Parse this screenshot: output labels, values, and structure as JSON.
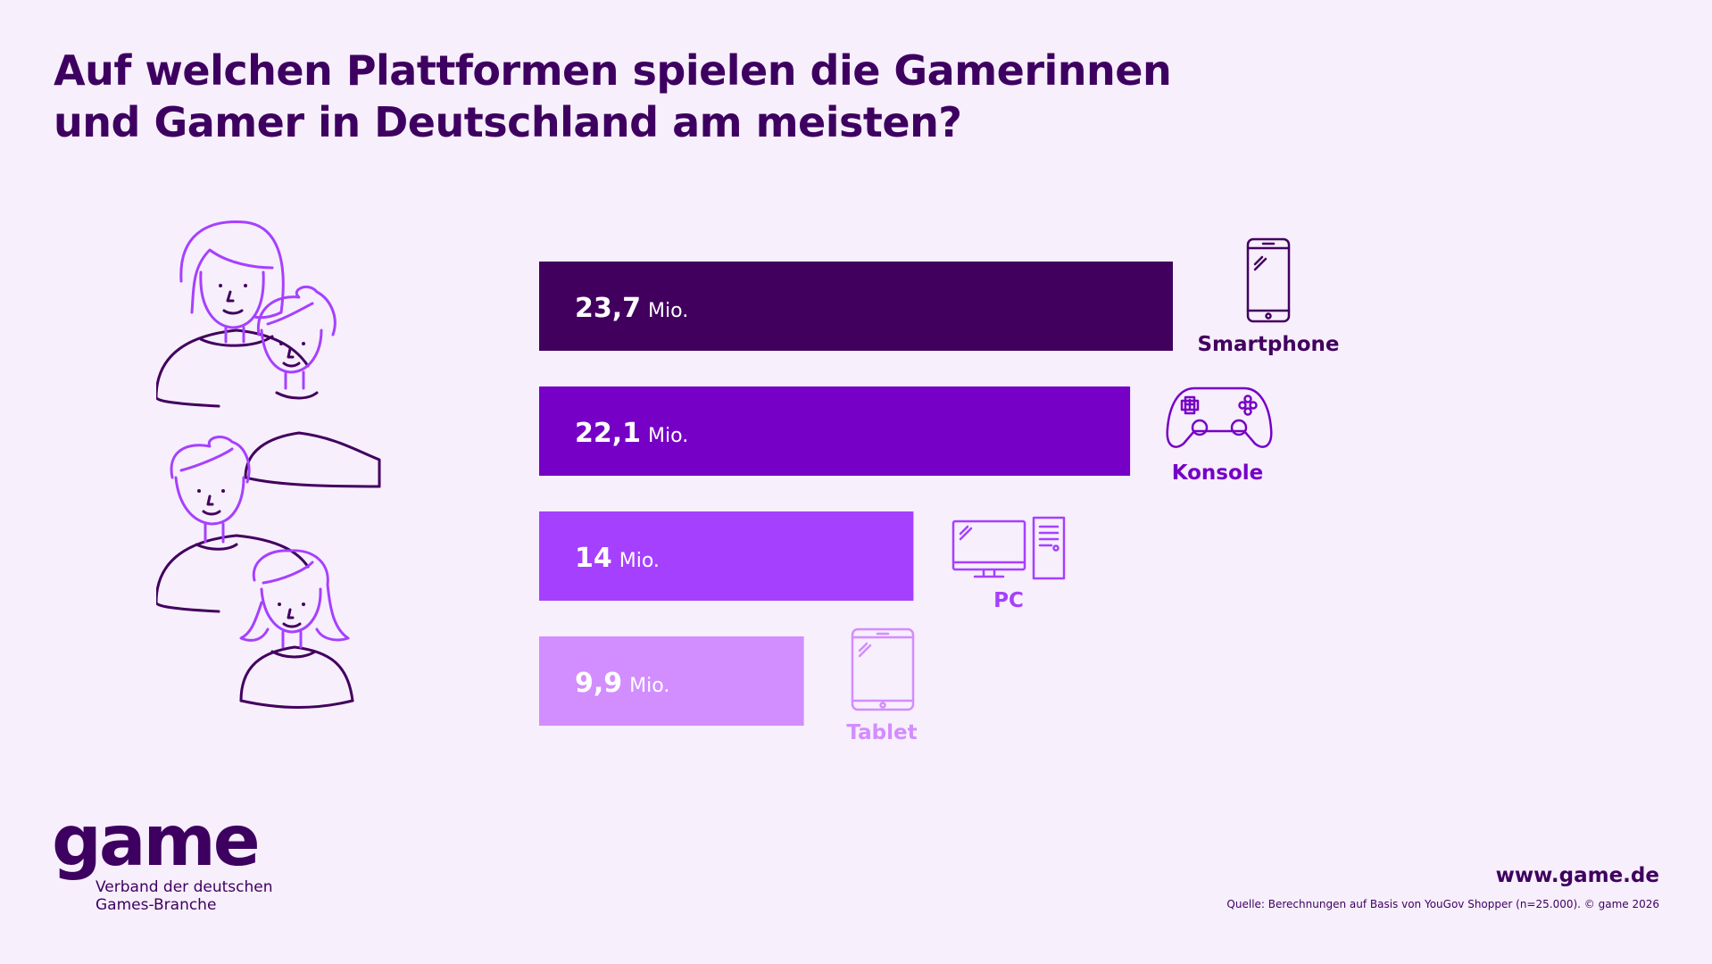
{
  "title_lines": [
    "Auf welchen Plattformen spielen die Gamerinnen",
    "und Gamer in Deutschland am meisten?"
  ],
  "chart_data": {
    "type": "bar",
    "orientation": "horizontal",
    "categories": [
      "Smartphone",
      "Konsole",
      "PC",
      "Tablet"
    ],
    "values": [
      23.7,
      22.1,
      14,
      9.9
    ],
    "value_labels": [
      "23,7",
      "22,1",
      "14",
      "9,9"
    ],
    "unit_label": "Mio.",
    "colors": [
      "#42005e",
      "#7600c6",
      "#a640ff",
      "#d28dff"
    ],
    "label_colors": [
      "#42005e",
      "#7600c6",
      "#a640ff",
      "#d28dff"
    ],
    "icons": [
      "smartphone-icon",
      "gamepad-icon",
      "desktop-pc-icon",
      "tablet-icon"
    ],
    "xlim": [
      0,
      23.7
    ],
    "grid": false,
    "legend": "none"
  },
  "illustration": {
    "name": "people-illustration",
    "stroke_color": "#a640ff",
    "outline_color": "#42005e"
  },
  "footer": {
    "logo_word": "game",
    "logo_tagline": [
      "Verband der deutschen",
      "Games-Branche"
    ],
    "website": "www.game.de",
    "source": "Quelle: Berechnungen auf Basis von YouGov Shopper (n=25.000). © game 2026"
  }
}
